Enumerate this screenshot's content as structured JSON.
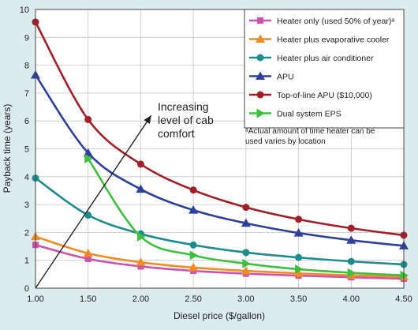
{
  "chart_data": {
    "type": "line",
    "xlabel": "Diesel price ($/gallon)",
    "ylabel": "Payback time (years)",
    "xlim": [
      1.0,
      4.5
    ],
    "ylim": [
      0,
      10
    ],
    "x_ticks": [
      "1.00",
      "1.50",
      "2.00",
      "2.50",
      "3.00",
      "3.50",
      "4.00",
      "4.50"
    ],
    "y_ticks": [
      "0",
      "1",
      "2",
      "3",
      "4",
      "5",
      "6",
      "7",
      "8",
      "9",
      "10"
    ],
    "grid": true,
    "legend_position": "top-right",
    "series": [
      {
        "name": "Heater only (used 50% of year)ᵃ",
        "color": "#cc55aa",
        "marker": "square",
        "x": [
          1.0,
          1.5,
          2.0,
          2.5,
          3.0,
          3.5,
          4.0,
          4.5
        ],
        "y": [
          1.55,
          1.05,
          0.78,
          0.62,
          0.52,
          0.45,
          0.39,
          0.34
        ]
      },
      {
        "name": "Heater plus evaporative cooler",
        "color": "#f08c28",
        "marker": "triangle-up",
        "x": [
          1.0,
          1.5,
          2.0,
          2.5,
          3.0,
          3.5,
          4.0,
          4.5
        ],
        "y": [
          1.85,
          1.25,
          0.93,
          0.74,
          0.62,
          0.53,
          0.46,
          0.41
        ]
      },
      {
        "name": "Heater plus air conditioner",
        "color": "#1e8c8c",
        "marker": "circle",
        "x": [
          1.0,
          1.5,
          2.0,
          2.5,
          3.0,
          3.5,
          4.0,
          4.5
        ],
        "y": [
          3.95,
          2.62,
          1.95,
          1.55,
          1.28,
          1.1,
          0.96,
          0.85
        ]
      },
      {
        "name": "APU",
        "color": "#2e3f9c",
        "marker": "triangle-up",
        "x": [
          1.0,
          1.5,
          2.0,
          2.5,
          3.0,
          3.5,
          4.0,
          4.5
        ],
        "y": [
          7.65,
          4.85,
          3.55,
          2.8,
          2.33,
          1.98,
          1.72,
          1.52
        ]
      },
      {
        "name": "Top-of-line APU ($10,000)",
        "color": "#a0202a",
        "marker": "circle",
        "x": [
          1.0,
          1.5,
          2.0,
          2.5,
          3.0,
          3.5,
          4.0,
          4.5
        ],
        "y": [
          9.55,
          6.05,
          4.45,
          3.52,
          2.9,
          2.47,
          2.15,
          1.9
        ]
      },
      {
        "name": "Dual system EPS",
        "color": "#3fbf3f",
        "marker": "triangle-right",
        "x": [
          1.5,
          2.0,
          2.5,
          3.0,
          3.5,
          4.0,
          4.5
        ],
        "y": [
          4.65,
          1.85,
          1.18,
          0.88,
          0.68,
          0.55,
          0.46
        ]
      }
    ],
    "annotations": [
      {
        "text_lines": [
          "Increasing",
          "level of cab",
          "comfort"
        ],
        "arrow_from": [
          1.0,
          0.0
        ],
        "arrow_to": [
          2.1,
          6.2
        ]
      }
    ],
    "footnote": [
      "ᵃActual amount of time heater can be",
      "used varies by location"
    ]
  }
}
